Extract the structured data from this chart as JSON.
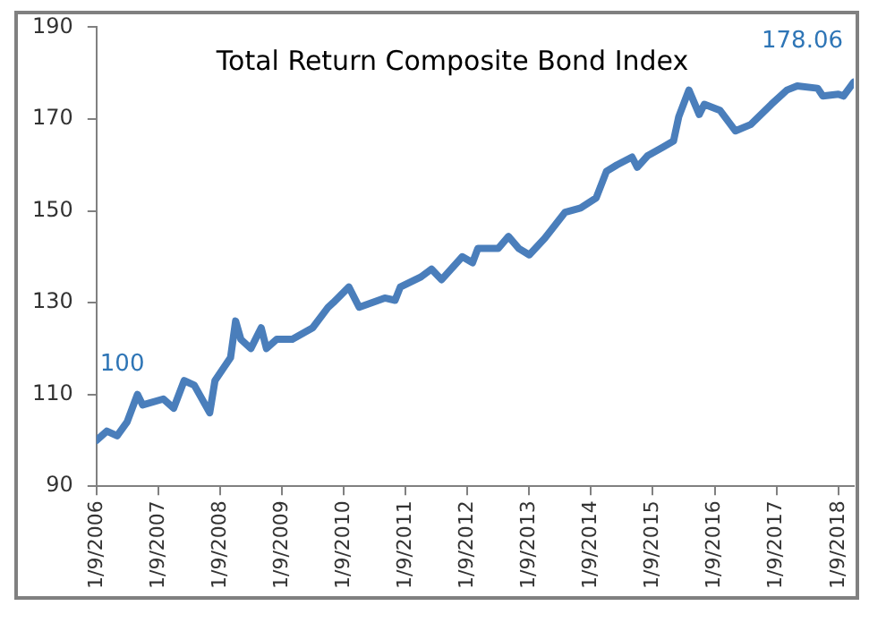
{
  "chart_data": {
    "type": "line",
    "title": "Total Return Composite Bond Index",
    "xlim": [
      "2006-09",
      "2018-12"
    ],
    "xticks": [
      {
        "value": "2006-09-01",
        "label": "1/9/2006"
      },
      {
        "value": "2007-09-01",
        "label": "1/9/2007"
      },
      {
        "value": "2008-09-01",
        "label": "1/9/2008"
      },
      {
        "value": "2009-09-01",
        "label": "1/9/2009"
      },
      {
        "value": "2010-09-01",
        "label": "1/9/2010"
      },
      {
        "value": "2011-09-01",
        "label": "1/9/2011"
      },
      {
        "value": "2012-09-01",
        "label": "1/9/2012"
      },
      {
        "value": "2013-09-01",
        "label": "1/9/2013"
      },
      {
        "value": "2014-09-01",
        "label": "1/9/2014"
      },
      {
        "value": "2015-09-01",
        "label": "1/9/2015"
      },
      {
        "value": "2016-09-01",
        "label": "1/9/2016"
      },
      {
        "value": "2017-09-01",
        "label": "1/9/2017"
      },
      {
        "value": "2018-09-01",
        "label": "1/9/2018"
      }
    ],
    "ylim": [
      90,
      190
    ],
    "yticks": [
      90,
      110,
      130,
      150,
      170,
      190
    ],
    "grid": false,
    "legend": false,
    "marker": "none",
    "line_style": "solid",
    "x": [
      "2006-09",
      "2006-11",
      "2007-01",
      "2007-03",
      "2007-05",
      "2007-06",
      "2007-10",
      "2007-12",
      "2008-02",
      "2008-04",
      "2008-07",
      "2008-08",
      "2008-11",
      "2008-12",
      "2009-01",
      "2009-03",
      "2009-05",
      "2009-06",
      "2009-08",
      "2009-11",
      "2010-03",
      "2010-06",
      "2010-07",
      "2010-10",
      "2010-12",
      "2011-05",
      "2011-07",
      "2011-08",
      "2011-12",
      "2012-02",
      "2012-04",
      "2012-08",
      "2012-10",
      "2012-11",
      "2013-03",
      "2013-05",
      "2013-07",
      "2013-09",
      "2013-12",
      "2014-04",
      "2014-07",
      "2014-10",
      "2014-12",
      "2015-02",
      "2015-05",
      "2015-06",
      "2015-08",
      "2015-11",
      "2016-01",
      "2016-02",
      "2016-04",
      "2016-06",
      "2016-07",
      "2016-10",
      "2017-01",
      "2017-04",
      "2017-08",
      "2017-11",
      "2018-01",
      "2018-05",
      "2018-06",
      "2018-09",
      "2018-10",
      "2018-12"
    ],
    "series": [
      {
        "color": "#4a7ebb",
        "values": [
          100,
          102,
          101,
          104,
          110,
          107.7,
          109,
          107,
          113,
          112,
          106,
          113,
          118,
          126,
          122,
          120,
          124.5,
          120,
          122,
          122,
          124.5,
          129,
          130,
          133.4,
          129,
          131,
          130.5,
          133.4,
          135.6,
          137.3,
          135,
          140,
          138.7,
          141.8,
          141.8,
          144.4,
          141.8,
          140.4,
          144,
          149.7,
          150.6,
          152.8,
          158.6,
          160,
          161.7,
          159.5,
          162,
          163.9,
          165.2,
          170.5,
          176.3,
          171,
          173.2,
          171.9,
          167.4,
          168.8,
          173.2,
          176.3,
          177.2,
          176.7,
          175,
          175.4,
          175,
          178.06
        ]
      }
    ],
    "annotations": [
      {
        "text": "100",
        "x": "2006-09",
        "y": 100
      },
      {
        "text": "178.06",
        "x": "2018-12",
        "y": 178.06
      }
    ]
  }
}
